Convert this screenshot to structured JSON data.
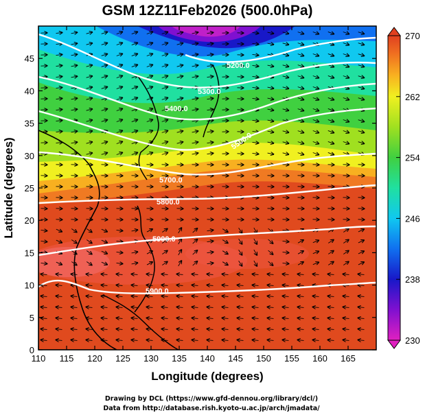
{
  "title": "GSM 12Z11Feb2026 (500.0hPa)",
  "x_axis": {
    "label": "Longitude (degrees)",
    "range": [
      110,
      170
    ],
    "ticks": [
      "110",
      "115",
      "120",
      "125",
      "130",
      "135",
      "140",
      "145",
      "150",
      "155",
      "160",
      "165"
    ]
  },
  "y_axis": {
    "label": "Latitude  (degrees)",
    "range": [
      0,
      50
    ],
    "ticks": [
      "0",
      "5",
      "10",
      "15",
      "20",
      "25",
      "30",
      "35",
      "40",
      "45"
    ]
  },
  "colorbar": {
    "range": [
      230,
      270
    ],
    "ticks": [
      "230",
      "238",
      "246",
      "254",
      "262",
      "270"
    ],
    "colors": [
      "#e020c0",
      "#9020d0",
      "#2020d0",
      "#1070f0",
      "#10c8f0",
      "#20e0a0",
      "#40d040",
      "#90e020",
      "#f0f020",
      "#f8b020",
      "#f07020",
      "#e04020"
    ]
  },
  "contours": [
    {
      "label": "5200.0"
    },
    {
      "label": "5300.0"
    },
    {
      "label": "5400.0"
    },
    {
      "label": "5500.0"
    },
    {
      "label": "5700.0"
    },
    {
      "label": "5800.0"
    },
    {
      "label": "5900.0"
    },
    {
      "label": "5900.0"
    }
  ],
  "credits": [
    "Drawing by DCL (https://www.gfd-dennou.org/library/dcl/)",
    "Data from http://database.rish.kyoto-u.ac.jp/arch/jmadata/"
  ]
}
